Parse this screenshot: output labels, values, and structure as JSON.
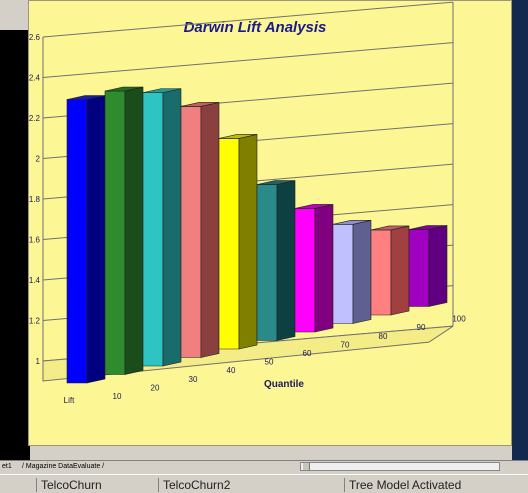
{
  "chart_data": {
    "type": "bar",
    "title": "Darwin Lift Analysis",
    "xlabel": "Quantile",
    "ylabel": "Lift",
    "categories": [
      "10",
      "20",
      "30",
      "40",
      "50",
      "60",
      "70",
      "80",
      "90",
      "100"
    ],
    "values": [
      2.4,
      2.4,
      2.35,
      2.24,
      2.04,
      1.77,
      1.61,
      1.49,
      1.42,
      1.38
    ],
    "ylim": [
      1,
      2.6
    ],
    "yticks": [
      "1",
      "1.2",
      "1.4",
      "1.6",
      "1.8",
      "2",
      "2.2",
      "2.4",
      "2.6"
    ],
    "grid": true,
    "colors": [
      {
        "front": "#0000ff",
        "side": "#000080",
        "top": "#1a1ab0"
      },
      {
        "front": "#2e8b2e",
        "side": "#1a4d1a",
        "top": "#246b24"
      },
      {
        "front": "#2ec4c4",
        "side": "#1a6b6b",
        "top": "#229999"
      },
      {
        "front": "#f08080",
        "side": "#8b4040",
        "top": "#c06060"
      },
      {
        "front": "#ffff00",
        "side": "#808000",
        "top": "#c0c000"
      },
      {
        "front": "#2a8a8a",
        "side": "#0d4040",
        "top": "#1c6565"
      },
      {
        "front": "#ff00ff",
        "side": "#800080",
        "top": "#c000c0"
      },
      {
        "front": "#c0c0ff",
        "side": "#606090",
        "top": "#9090d0"
      },
      {
        "front": "#ff8080",
        "side": "#a04040",
        "top": "#c06060"
      },
      {
        "front": "#a000c0",
        "side": "#600080",
        "top": "#8000a0"
      }
    ]
  },
  "sheet_tabs": {
    "tab1": "et1",
    "tab2": "Magazine DataEvaluate"
  },
  "status_bar": {
    "cell1": "TelcoChurn",
    "cell2": "TelcoChurn2",
    "cell3": "Tree Model Activated"
  }
}
